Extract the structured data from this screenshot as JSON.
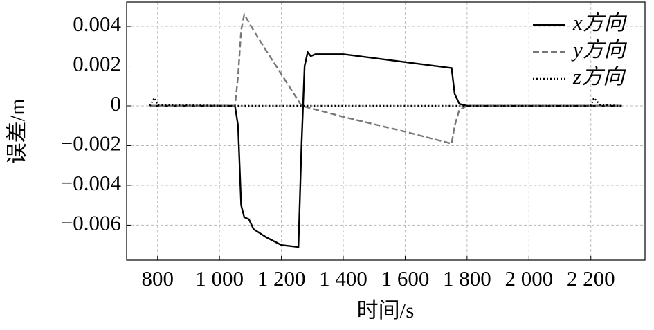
{
  "chart_data": {
    "type": "line",
    "xlabel": "时间/s",
    "ylabel": "误差/m",
    "x": [
      775,
      790,
      800,
      1050,
      1060,
      1070,
      1080,
      1095,
      1110,
      1120,
      1150,
      1200,
      1255,
      1265,
      1275,
      1285,
      1295,
      1310,
      1400,
      1600,
      1750,
      1760,
      1775,
      1800,
      2000,
      2200,
      2210,
      2230,
      2300
    ],
    "series": [
      {
        "name": "x方向",
        "color": "#000000",
        "dash": "solid",
        "values": [
          0,
          0,
          0,
          0,
          -0.001,
          -0.005,
          -0.0056,
          -0.0057,
          -0.0062,
          -0.0063,
          -0.0066,
          -0.007,
          -0.0071,
          -0.002,
          0.002,
          0.0027,
          0.0025,
          0.0026,
          0.0026,
          0.0022,
          0.0019,
          0.0006,
          0.0001,
          0,
          0,
          0,
          0,
          0,
          0
        ]
      },
      {
        "name": "y方向",
        "color": "#777777",
        "dash": "dashed",
        "values": [
          0,
          0,
          0,
          0,
          0.0015,
          0.0038,
          0.0046,
          0.0042,
          0.0038,
          0.00355,
          0.0028,
          0.00159,
          0.00025,
          0,
          -4e-05,
          -8e-05,
          -0.00012,
          -0.00018,
          -0.00055,
          -0.0013,
          -0.0019,
          -0.001,
          -0.0002,
          0,
          0,
          0,
          0,
          0,
          0
        ]
      },
      {
        "name": "z方向",
        "color": "#000000",
        "dash": "dotted",
        "values": [
          0,
          0.0004,
          5e-05,
          0,
          0,
          0,
          0,
          0,
          0,
          0,
          0,
          0,
          0,
          0,
          0,
          0,
          0,
          0,
          0,
          0,
          0,
          0,
          0,
          0,
          0,
          0,
          0.0004,
          5e-05,
          0
        ]
      }
    ],
    "xlim": [
      700,
      2375
    ],
    "ylim": [
      -0.00776,
      0.00522
    ],
    "xticks": [
      800,
      {
        "value": 1000,
        "label": "1 000"
      },
      {
        "value": 1200,
        "label": "1 200"
      },
      {
        "value": 1400,
        "label": "1 400"
      },
      {
        "value": 1600,
        "label": "1 600"
      },
      {
        "value": 1800,
        "label": "1 800"
      },
      {
        "value": 2000,
        "label": "2 000"
      },
      {
        "value": 2200,
        "label": "2 200"
      }
    ],
    "yticks": [
      {
        "value": -0.006,
        "label": "−0.006"
      },
      {
        "value": -0.004,
        "label": "−0.004"
      },
      {
        "value": -0.002,
        "label": "−0.002"
      },
      0,
      0.002,
      0.004
    ],
    "grid": true,
    "legend": "upper right"
  }
}
